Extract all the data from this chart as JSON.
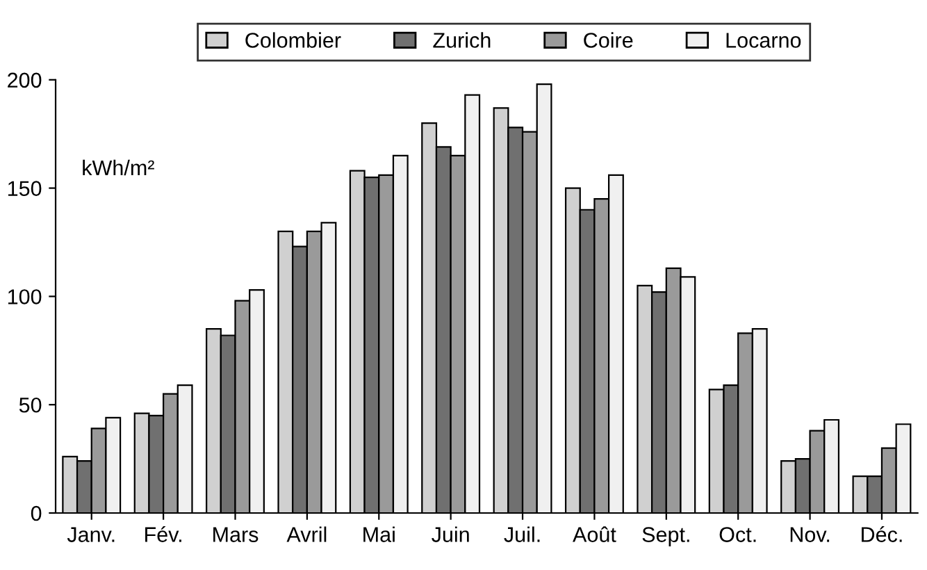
{
  "chart_data": {
    "type": "bar",
    "ylabel": "kWh/m²",
    "categories": [
      "Janv.",
      "Fév.",
      "Mars",
      "Avril",
      "Mai",
      "Juin",
      "Juil.",
      "Août",
      "Sept.",
      "Oct.",
      "Nov.",
      "Déc."
    ],
    "series": [
      {
        "name": "Colombier",
        "color": "#d0d0d0",
        "values": [
          26,
          46,
          85,
          130,
          158,
          180,
          187,
          150,
          105,
          57,
          24,
          17
        ]
      },
      {
        "name": "Zurich",
        "color": "#707070",
        "values": [
          24,
          45,
          82,
          123,
          155,
          169,
          178,
          140,
          102,
          59,
          25,
          17
        ]
      },
      {
        "name": "Coire",
        "color": "#9a9a9a",
        "values": [
          39,
          55,
          98,
          130,
          156,
          165,
          176,
          145,
          113,
          83,
          38,
          30
        ]
      },
      {
        "name": "Locarno",
        "color": "#f0f0f0",
        "values": [
          44,
          59,
          103,
          134,
          165,
          193,
          198,
          156,
          109,
          85,
          43,
          41
        ]
      }
    ],
    "ylim": [
      0,
      200
    ],
    "yticks": [
      0,
      50,
      100,
      150,
      200
    ],
    "grid": false,
    "legend": "top"
  }
}
